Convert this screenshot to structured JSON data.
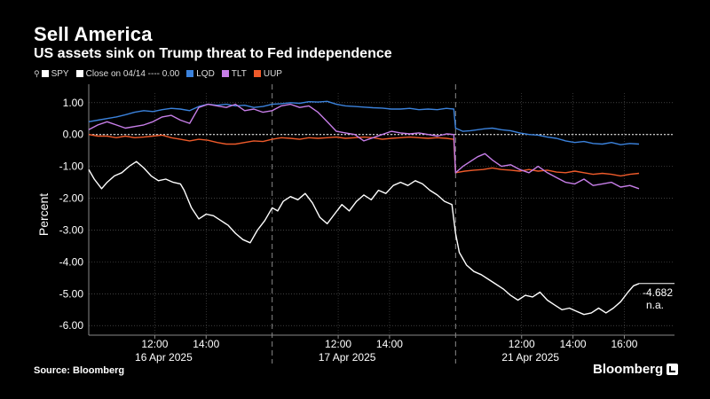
{
  "header": {
    "title": "Sell America",
    "subtitle": "US assets sink on Trump threat to Fed independence"
  },
  "legend": {
    "items": [
      {
        "label": "SPY",
        "color": "#ffffff",
        "icon": "pin-icon"
      },
      {
        "label": "Close on 04/14 ---- 0.00",
        "color": "#ffffff"
      },
      {
        "label": "LQD",
        "color": "#3b82dc"
      },
      {
        "label": "TLT",
        "color": "#c77ee8"
      },
      {
        "label": "UUP",
        "color": "#ee5a2a"
      }
    ]
  },
  "footer": {
    "source": "Source: Bloomberg",
    "brand": "Bloomberg"
  },
  "chart_data": {
    "type": "line",
    "ylabel": "Percent",
    "ylim": [
      -6.3,
      1.3
    ],
    "yticks": [
      "1.00",
      "0.00",
      "-1.00",
      "-2.00",
      "-3.00",
      "-4.00",
      "-5.00",
      "-6.00"
    ],
    "ytick_values": [
      1,
      0,
      -1,
      -2,
      -3,
      -4,
      -5,
      -6
    ],
    "x_domain": [
      0,
      3
    ],
    "x_ticks": [
      {
        "x": 0.36,
        "label": "12:00"
      },
      {
        "x": 0.64,
        "label": "14:00"
      },
      {
        "x": 1.36,
        "label": "12:00"
      },
      {
        "x": 1.64,
        "label": "14:00"
      },
      {
        "x": 2.36,
        "label": "12:00"
      },
      {
        "x": 2.64,
        "label": "14:00"
      },
      {
        "x": 2.92,
        "label": "16:00"
      }
    ],
    "date_labels": [
      {
        "x": 0.36,
        "label": "16 Apr 2025"
      },
      {
        "x": 1.36,
        "label": "17 Apr 2025"
      },
      {
        "x": 2.36,
        "label": "21 Apr 2025"
      }
    ],
    "session_breaks": [
      1,
      2
    ],
    "reference_line": 0,
    "last_value_label": "-4.682",
    "last_value_sub": "n.a.",
    "series": [
      {
        "name": "SPY",
        "color": "#ffffff",
        "points": [
          [
            0,
            -1.1
          ],
          [
            0.03,
            -1.4
          ],
          [
            0.07,
            -1.7
          ],
          [
            0.1,
            -1.5
          ],
          [
            0.14,
            -1.3
          ],
          [
            0.18,
            -1.2
          ],
          [
            0.22,
            -1.0
          ],
          [
            0.26,
            -0.85
          ],
          [
            0.3,
            -1.05
          ],
          [
            0.34,
            -1.3
          ],
          [
            0.38,
            -1.45
          ],
          [
            0.42,
            -1.4
          ],
          [
            0.46,
            -1.5
          ],
          [
            0.5,
            -1.55
          ],
          [
            0.52,
            -1.75
          ],
          [
            0.56,
            -2.3
          ],
          [
            0.6,
            -2.65
          ],
          [
            0.64,
            -2.5
          ],
          [
            0.68,
            -2.55
          ],
          [
            0.72,
            -2.7
          ],
          [
            0.76,
            -2.85
          ],
          [
            0.8,
            -3.1
          ],
          [
            0.84,
            -3.3
          ],
          [
            0.88,
            -3.4
          ],
          [
            0.92,
            -3.0
          ],
          [
            0.96,
            -2.7
          ],
          [
            1.0,
            -2.3
          ],
          [
            1.03,
            -2.4
          ],
          [
            1.06,
            -2.1
          ],
          [
            1.1,
            -1.95
          ],
          [
            1.14,
            -2.05
          ],
          [
            1.18,
            -1.85
          ],
          [
            1.22,
            -2.15
          ],
          [
            1.26,
            -2.6
          ],
          [
            1.3,
            -2.8
          ],
          [
            1.34,
            -2.5
          ],
          [
            1.38,
            -2.2
          ],
          [
            1.42,
            -2.4
          ],
          [
            1.46,
            -2.1
          ],
          [
            1.5,
            -1.9
          ],
          [
            1.54,
            -2.05
          ],
          [
            1.58,
            -1.75
          ],
          [
            1.62,
            -1.85
          ],
          [
            1.66,
            -1.6
          ],
          [
            1.7,
            -1.5
          ],
          [
            1.74,
            -1.6
          ],
          [
            1.78,
            -1.45
          ],
          [
            1.82,
            -1.55
          ],
          [
            1.86,
            -1.75
          ],
          [
            1.9,
            -1.9
          ],
          [
            1.94,
            -2.1
          ],
          [
            1.98,
            -2.2
          ],
          [
            2.0,
            -3.1
          ],
          [
            2.02,
            -3.7
          ],
          [
            2.06,
            -4.1
          ],
          [
            2.1,
            -4.3
          ],
          [
            2.14,
            -4.4
          ],
          [
            2.18,
            -4.55
          ],
          [
            2.22,
            -4.7
          ],
          [
            2.26,
            -4.85
          ],
          [
            2.3,
            -5.05
          ],
          [
            2.34,
            -5.2
          ],
          [
            2.38,
            -5.05
          ],
          [
            2.42,
            -5.1
          ],
          [
            2.46,
            -4.95
          ],
          [
            2.5,
            -5.2
          ],
          [
            2.54,
            -5.35
          ],
          [
            2.58,
            -5.5
          ],
          [
            2.62,
            -5.45
          ],
          [
            2.66,
            -5.55
          ],
          [
            2.7,
            -5.65
          ],
          [
            2.74,
            -5.6
          ],
          [
            2.78,
            -5.45
          ],
          [
            2.82,
            -5.6
          ],
          [
            2.86,
            -5.45
          ],
          [
            2.9,
            -5.25
          ],
          [
            2.94,
            -4.95
          ],
          [
            2.97,
            -4.75
          ],
          [
            3.0,
            -4.68
          ]
        ]
      },
      {
        "name": "LQD",
        "color": "#3b82dc",
        "points": [
          [
            0,
            0.4
          ],
          [
            0.05,
            0.45
          ],
          [
            0.1,
            0.5
          ],
          [
            0.15,
            0.55
          ],
          [
            0.2,
            0.62
          ],
          [
            0.25,
            0.7
          ],
          [
            0.3,
            0.75
          ],
          [
            0.35,
            0.72
          ],
          [
            0.4,
            0.78
          ],
          [
            0.45,
            0.82
          ],
          [
            0.5,
            0.8
          ],
          [
            0.55,
            0.75
          ],
          [
            0.6,
            0.88
          ],
          [
            0.65,
            0.95
          ],
          [
            0.7,
            0.92
          ],
          [
            0.75,
            0.95
          ],
          [
            0.8,
            0.9
          ],
          [
            0.85,
            0.92
          ],
          [
            0.9,
            0.85
          ],
          [
            0.95,
            0.88
          ],
          [
            1.0,
            0.95
          ],
          [
            1.05,
            0.97
          ],
          [
            1.1,
            1.0
          ],
          [
            1.15,
            0.98
          ],
          [
            1.2,
            1.03
          ],
          [
            1.25,
            1.02
          ],
          [
            1.3,
            1.04
          ],
          [
            1.35,
            0.95
          ],
          [
            1.4,
            0.9
          ],
          [
            1.45,
            0.88
          ],
          [
            1.5,
            0.86
          ],
          [
            1.55,
            0.84
          ],
          [
            1.6,
            0.83
          ],
          [
            1.65,
            0.8
          ],
          [
            1.7,
            0.8
          ],
          [
            1.75,
            0.82
          ],
          [
            1.8,
            0.78
          ],
          [
            1.85,
            0.8
          ],
          [
            1.9,
            0.78
          ],
          [
            1.95,
            0.82
          ],
          [
            1.99,
            0.8
          ],
          [
            2.0,
            0.2
          ],
          [
            2.04,
            0.1
          ],
          [
            2.08,
            0.12
          ],
          [
            2.12,
            0.15
          ],
          [
            2.16,
            0.18
          ],
          [
            2.2,
            0.2
          ],
          [
            2.25,
            0.15
          ],
          [
            2.3,
            0.12
          ],
          [
            2.35,
            0.05
          ],
          [
            2.4,
            0.0
          ],
          [
            2.45,
            -0.02
          ],
          [
            2.5,
            -0.08
          ],
          [
            2.55,
            -0.12
          ],
          [
            2.6,
            -0.2
          ],
          [
            2.65,
            -0.25
          ],
          [
            2.7,
            -0.22
          ],
          [
            2.75,
            -0.28
          ],
          [
            2.8,
            -0.3
          ],
          [
            2.85,
            -0.25
          ],
          [
            2.9,
            -0.32
          ],
          [
            2.95,
            -0.28
          ],
          [
            3.0,
            -0.3
          ]
        ]
      },
      {
        "name": "TLT",
        "color": "#c77ee8",
        "points": [
          [
            0,
            0.15
          ],
          [
            0.05,
            0.3
          ],
          [
            0.1,
            0.4
          ],
          [
            0.15,
            0.3
          ],
          [
            0.2,
            0.2
          ],
          [
            0.25,
            0.25
          ],
          [
            0.3,
            0.3
          ],
          [
            0.35,
            0.4
          ],
          [
            0.4,
            0.55
          ],
          [
            0.45,
            0.6
          ],
          [
            0.5,
            0.45
          ],
          [
            0.55,
            0.35
          ],
          [
            0.6,
            0.85
          ],
          [
            0.65,
            0.95
          ],
          [
            0.7,
            0.9
          ],
          [
            0.75,
            0.85
          ],
          [
            0.8,
            0.95
          ],
          [
            0.85,
            0.75
          ],
          [
            0.9,
            0.8
          ],
          [
            0.95,
            0.7
          ],
          [
            1.0,
            0.75
          ],
          [
            1.05,
            0.9
          ],
          [
            1.1,
            0.95
          ],
          [
            1.15,
            0.85
          ],
          [
            1.2,
            0.9
          ],
          [
            1.25,
            0.7
          ],
          [
            1.3,
            0.4
          ],
          [
            1.35,
            0.1
          ],
          [
            1.4,
            0.05
          ],
          [
            1.45,
            0.0
          ],
          [
            1.5,
            -0.2
          ],
          [
            1.55,
            -0.1
          ],
          [
            1.6,
            0.0
          ],
          [
            1.65,
            0.1
          ],
          [
            1.7,
            0.05
          ],
          [
            1.75,
            0.02
          ],
          [
            1.8,
            0.05
          ],
          [
            1.85,
            0.0
          ],
          [
            1.9,
            -0.05
          ],
          [
            1.95,
            0.02
          ],
          [
            1.99,
            0.0
          ],
          [
            2.0,
            -1.2
          ],
          [
            2.04,
            -1.0
          ],
          [
            2.08,
            -0.85
          ],
          [
            2.12,
            -0.7
          ],
          [
            2.16,
            -0.6
          ],
          [
            2.2,
            -0.8
          ],
          [
            2.25,
            -1.0
          ],
          [
            2.3,
            -0.95
          ],
          [
            2.35,
            -1.1
          ],
          [
            2.4,
            -1.2
          ],
          [
            2.45,
            -1.0
          ],
          [
            2.5,
            -1.2
          ],
          [
            2.55,
            -1.35
          ],
          [
            2.6,
            -1.5
          ],
          [
            2.65,
            -1.55
          ],
          [
            2.7,
            -1.4
          ],
          [
            2.75,
            -1.6
          ],
          [
            2.8,
            -1.55
          ],
          [
            2.85,
            -1.5
          ],
          [
            2.9,
            -1.65
          ],
          [
            2.95,
            -1.6
          ],
          [
            3.0,
            -1.7
          ]
        ]
      },
      {
        "name": "UUP",
        "color": "#ee5a2a",
        "points": [
          [
            0,
            0.0
          ],
          [
            0.05,
            -0.05
          ],
          [
            0.1,
            -0.05
          ],
          [
            0.15,
            -0.1
          ],
          [
            0.2,
            -0.05
          ],
          [
            0.25,
            -0.1
          ],
          [
            0.3,
            -0.08
          ],
          [
            0.35,
            -0.05
          ],
          [
            0.4,
            -0.02
          ],
          [
            0.45,
            -0.1
          ],
          [
            0.5,
            -0.15
          ],
          [
            0.55,
            -0.2
          ],
          [
            0.6,
            -0.15
          ],
          [
            0.65,
            -0.18
          ],
          [
            0.7,
            -0.25
          ],
          [
            0.75,
            -0.3
          ],
          [
            0.8,
            -0.3
          ],
          [
            0.85,
            -0.25
          ],
          [
            0.9,
            -0.2
          ],
          [
            0.95,
            -0.22
          ],
          [
            1.0,
            -0.15
          ],
          [
            1.05,
            -0.1
          ],
          [
            1.1,
            -0.12
          ],
          [
            1.15,
            -0.15
          ],
          [
            1.2,
            -0.1
          ],
          [
            1.25,
            -0.12
          ],
          [
            1.3,
            -0.1
          ],
          [
            1.35,
            -0.08
          ],
          [
            1.4,
            -0.12
          ],
          [
            1.45,
            -0.1
          ],
          [
            1.5,
            -0.08
          ],
          [
            1.55,
            -0.1
          ],
          [
            1.6,
            -0.15
          ],
          [
            1.65,
            -0.12
          ],
          [
            1.7,
            -0.1
          ],
          [
            1.75,
            -0.08
          ],
          [
            1.8,
            -0.1
          ],
          [
            1.85,
            -0.12
          ],
          [
            1.9,
            -0.1
          ],
          [
            1.95,
            -0.12
          ],
          [
            1.99,
            -0.15
          ],
          [
            2.0,
            -1.2
          ],
          [
            2.05,
            -1.15
          ],
          [
            2.1,
            -1.12
          ],
          [
            2.15,
            -1.1
          ],
          [
            2.2,
            -1.05
          ],
          [
            2.25,
            -1.1
          ],
          [
            2.3,
            -1.12
          ],
          [
            2.35,
            -1.15
          ],
          [
            2.4,
            -1.1
          ],
          [
            2.45,
            -1.15
          ],
          [
            2.5,
            -1.12
          ],
          [
            2.55,
            -1.18
          ],
          [
            2.6,
            -1.2
          ],
          [
            2.65,
            -1.15
          ],
          [
            2.7,
            -1.2
          ],
          [
            2.75,
            -1.25
          ],
          [
            2.8,
            -1.22
          ],
          [
            2.85,
            -1.25
          ],
          [
            2.9,
            -1.3
          ],
          [
            2.95,
            -1.25
          ],
          [
            3.0,
            -1.22
          ]
        ]
      }
    ]
  }
}
